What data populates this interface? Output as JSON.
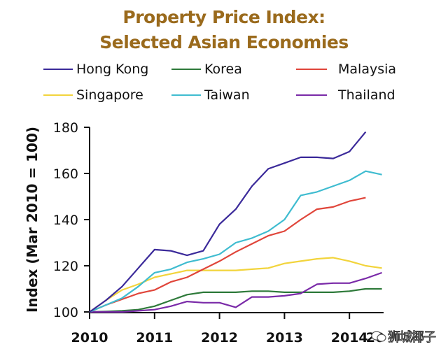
{
  "chart_data": {
    "type": "line",
    "title": "Property Price Index:",
    "subtitle": "Selected Asian Economies",
    "xlabel": "",
    "ylabel": "Index (Mar 2010 = 100)",
    "ylim": [
      100,
      180
    ],
    "xlim": [
      2010,
      2014.5
    ],
    "yticks": [
      "100",
      "120",
      "140",
      "160",
      "180"
    ],
    "xticks": [
      "2010",
      "2011",
      "2012",
      "2013",
      "2014"
    ],
    "obscured_xtick": "20",
    "legend_position": "top",
    "grid": false,
    "x": [
      2010.0,
      2010.25,
      2010.5,
      2010.75,
      2011.0,
      2011.25,
      2011.5,
      2011.75,
      2012.0,
      2012.25,
      2012.5,
      2012.75,
      2013.0,
      2013.25,
      2013.5,
      2013.75,
      2014.0,
      2014.25,
      2014.5
    ],
    "series": [
      {
        "name": "Hong Kong",
        "color": "#3b2a9a",
        "values": [
          100,
          105,
          111,
          119,
          127,
          126.5,
          124.5,
          126.5,
          138,
          144.5,
          154.5,
          162,
          164.5,
          167,
          167,
          166.5,
          169.5,
          178,
          null
        ]
      },
      {
        "name": "Korea",
        "color": "#2e7a3a",
        "values": [
          100,
          100.2,
          100.5,
          101,
          102.5,
          105,
          107.5,
          108.5,
          108.5,
          108.5,
          109,
          109,
          108.5,
          108.5,
          108.5,
          108.5,
          109,
          110,
          110
        ]
      },
      {
        "name": "Malaysia",
        "color": "#e0453a",
        "values": [
          100,
          103,
          105.5,
          108,
          109.5,
          113,
          115,
          118.5,
          122,
          126,
          129.5,
          133,
          135,
          140,
          144.5,
          145.5,
          148,
          149.5,
          null
        ]
      },
      {
        "name": "Singapore",
        "color": "#f2d43c",
        "values": [
          100,
          105,
          109.5,
          112,
          115,
          116.5,
          118,
          118,
          118,
          118,
          118.5,
          119,
          121,
          122,
          123,
          123.5,
          122,
          120,
          119
        ]
      },
      {
        "name": "Taiwan",
        "color": "#3fbcd0",
        "values": [
          100,
          103,
          106,
          111,
          117,
          118.5,
          121.5,
          123,
          125,
          130,
          132,
          135,
          140,
          150.5,
          152,
          154.5,
          157,
          161,
          159.5
        ]
      },
      {
        "name": "Thailand",
        "color": "#7a2aa8",
        "values": [
          100,
          100,
          100,
          100.5,
          101,
          102.5,
          104.5,
          104,
          104,
          102,
          106.5,
          106.5,
          107,
          108,
          112,
          112.5,
          112.5,
          114.5,
          117
        ]
      }
    ]
  },
  "title_color": "#9a6a1c",
  "watermark": {
    "icon": "wechat-icon",
    "text": "狮城椰子"
  }
}
